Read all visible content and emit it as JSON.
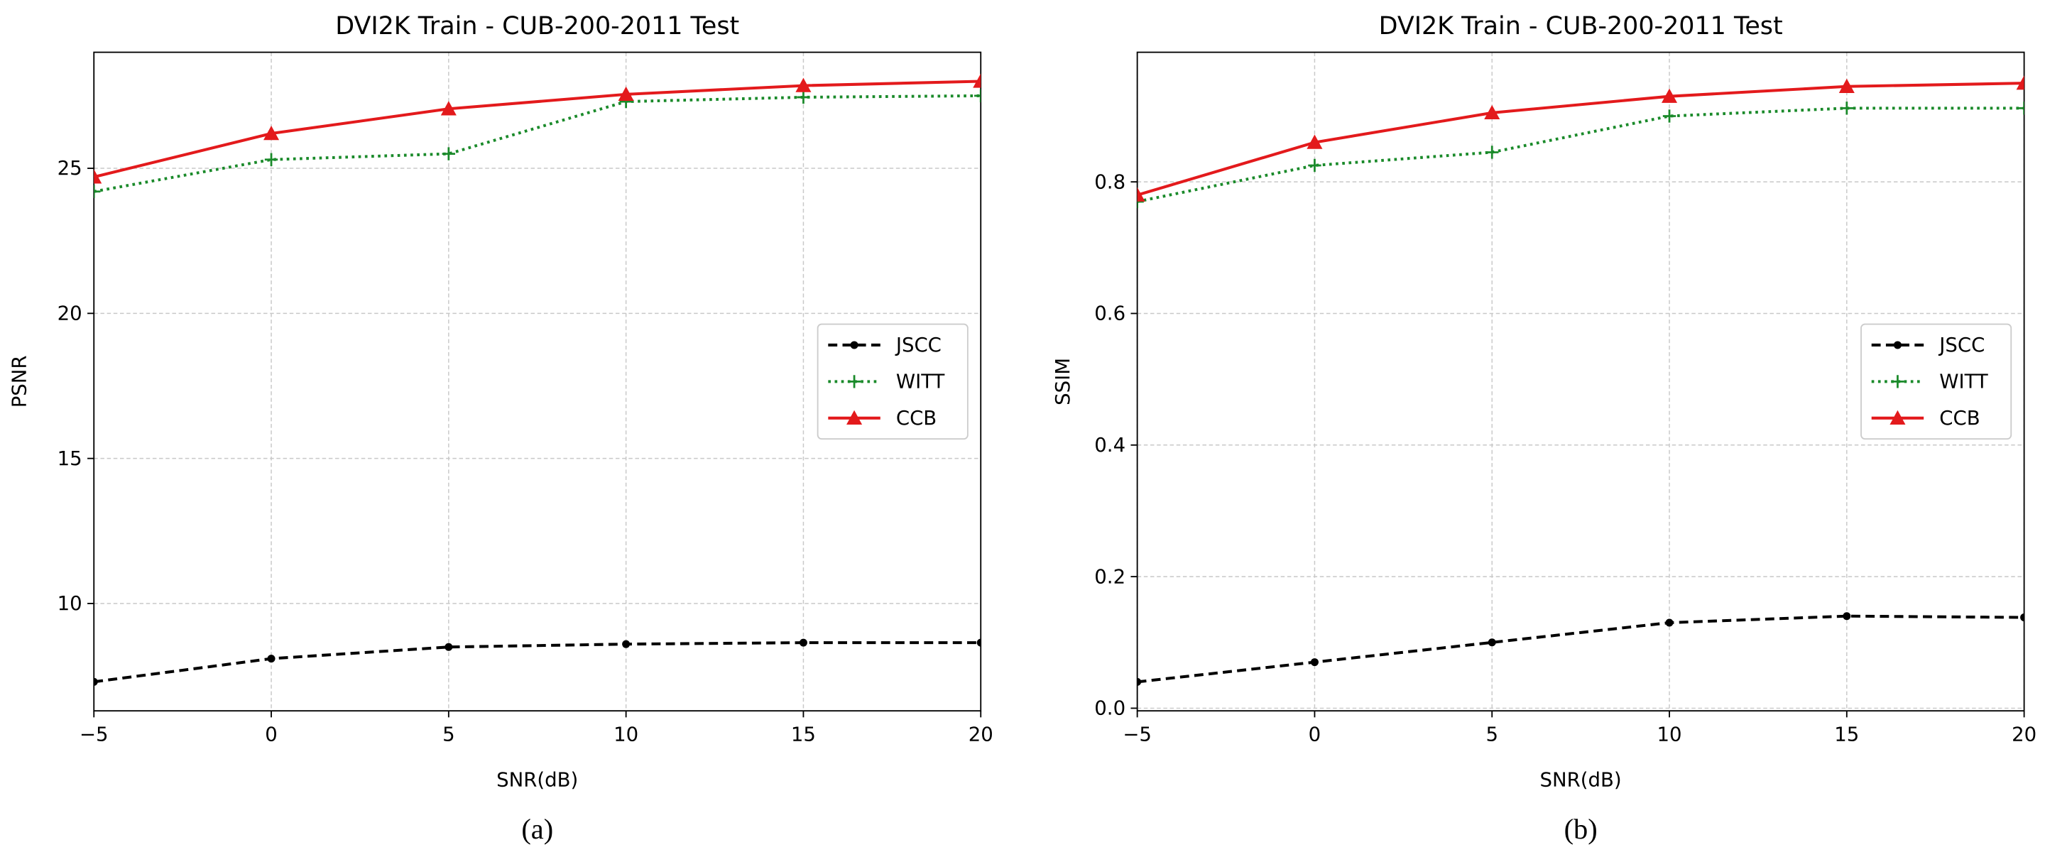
{
  "chart_data": [
    {
      "type": "line",
      "title": "DVI2K Train - CUB-200-2011 Test",
      "xlabel": "SNR(dB)",
      "ylabel": "PSNR",
      "caption": "(a)",
      "x": [
        -5,
        0,
        5,
        10,
        15,
        20
      ],
      "series": [
        {
          "name": "JSCC",
          "color": "#000000",
          "linestyle": "dashed",
          "marker": "o",
          "values": [
            7.3,
            8.1,
            8.5,
            8.6,
            8.65,
            8.65
          ]
        },
        {
          "name": "WITT",
          "color": "#1a8a2a",
          "linestyle": "dotted",
          "marker": "+",
          "values": [
            24.2,
            25.3,
            25.5,
            27.3,
            27.45,
            27.5
          ]
        },
        {
          "name": "CCB",
          "color": "#e31a1c",
          "linestyle": "solid",
          "marker": "^",
          "values": [
            24.7,
            26.2,
            27.05,
            27.55,
            27.85,
            28.0
          ]
        }
      ],
      "xlim": [
        -5,
        20
      ],
      "ylim": [
        6.3,
        29.0
      ],
      "xticks": [
        {
          "value": -5,
          "label": "−5"
        },
        0,
        5,
        10,
        15,
        20
      ],
      "yticks": [
        10,
        15,
        20,
        25
      ],
      "grid": true,
      "legend": "center right"
    },
    {
      "type": "line",
      "title": "DVI2K Train - CUB-200-2011 Test",
      "xlabel": "SNR(dB)",
      "ylabel": "SSIM",
      "caption": "(b)",
      "x": [
        -5,
        0,
        5,
        10,
        15,
        20
      ],
      "series": [
        {
          "name": "JSCC",
          "color": "#000000",
          "linestyle": "dashed",
          "marker": "o",
          "values": [
            0.04,
            0.07,
            0.1,
            0.13,
            0.14,
            0.138
          ]
        },
        {
          "name": "WITT",
          "color": "#1a8a2a",
          "linestyle": "dotted",
          "marker": "+",
          "values": [
            0.77,
            0.825,
            0.845,
            0.9,
            0.912,
            0.912
          ]
        },
        {
          "name": "CCB",
          "color": "#e31a1c",
          "linestyle": "solid",
          "marker": "^",
          "values": [
            0.78,
            0.86,
            0.905,
            0.93,
            0.945,
            0.95
          ]
        }
      ],
      "xlim": [
        -5,
        20
      ],
      "ylim": [
        -0.004,
        0.997
      ],
      "xticks": [
        {
          "value": -5,
          "label": "−5"
        },
        0,
        5,
        10,
        15,
        20
      ],
      "yticks": [
        {
          "value": 0,
          "label": "0.0"
        },
        0.2,
        0.4,
        0.6,
        0.8
      ],
      "grid": true,
      "legend": "center right"
    }
  ]
}
